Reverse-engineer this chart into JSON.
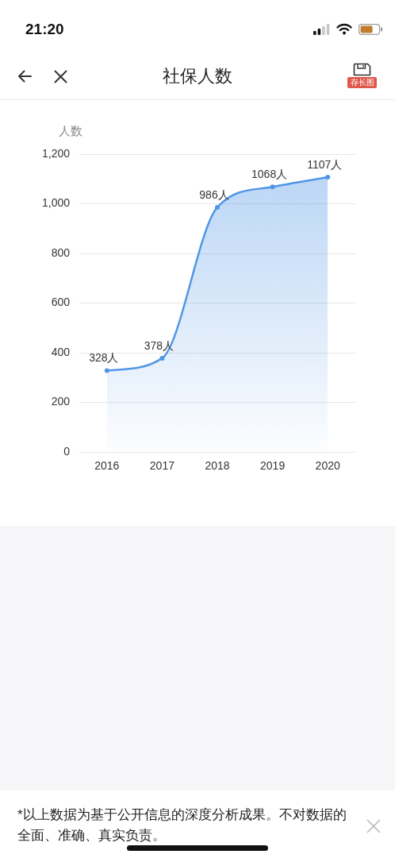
{
  "chart_data": {
    "type": "area",
    "title": "社保人数",
    "ylabel": "人数",
    "categories": [
      "2016",
      "2017",
      "2018",
      "2019",
      "2020"
    ],
    "values": [
      328,
      378,
      986,
      1068,
      1107
    ],
    "color": "#5196e6",
    "value_labels": [
      "328人",
      "378人",
      "986人",
      "1068人",
      "1107人"
    ],
    "ylim": [
      0,
      1200
    ],
    "yticks": [
      0,
      200,
      400,
      600,
      800,
      {
        "value": 1000,
        "label": "1,000"
      },
      {
        "value": 1200,
        "label": "1,200"
      }
    ],
    "grid": "y",
    "legend": false,
    "marker": "circle",
    "annotations": [
      "21:20",
      "存长图",
      "*以上数据为基于公开信息的深度分析成果。不对数据的全面、准确、真实负责。"
    ]
  }
}
